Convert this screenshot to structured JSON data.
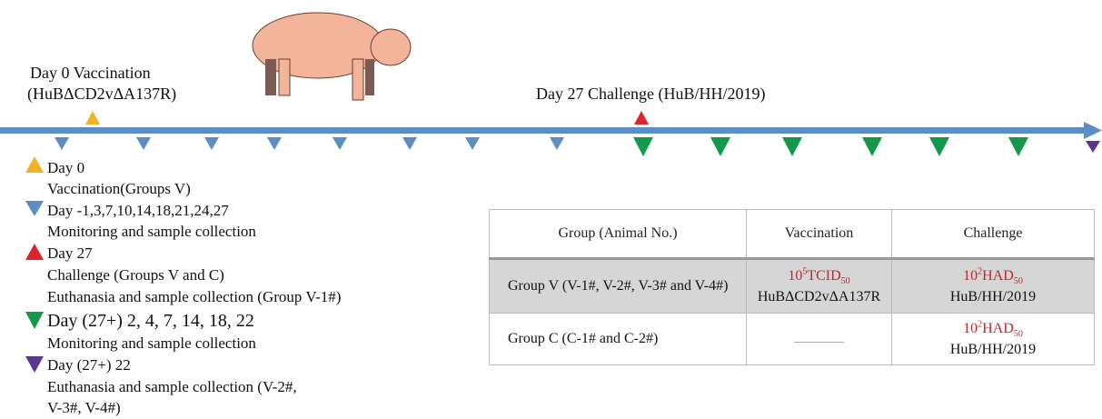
{
  "timeline": {
    "day0_label": "Day 0  Vaccination",
    "day0_strain": "(HuBΔCD2vΔA137R)",
    "day27_label": "Day 27 Challenge (HuB/HH/2019)",
    "colors": {
      "axis": "#5b8ec4",
      "yellow": "#f0b323",
      "blue": "#5b8ec4",
      "red": "#e0242c",
      "green": "#129a4a",
      "purple": "#5b3794"
    }
  },
  "legend": [
    {
      "icon": "yellow-up-triangle",
      "lines": [
        "Day 0",
        "Vaccination(Groups V)"
      ]
    },
    {
      "icon": "blue-down-triangle",
      "lines": [
        "Day -1,3,7,10,14,18,21,24,27",
        "Monitoring and sample collection"
      ]
    },
    {
      "icon": "red-up-triangle",
      "lines": [
        "Day 27",
        "Challenge (Groups V and C)",
        "Euthanasia and sample collection (Group V-1#)"
      ]
    },
    {
      "icon": "green-down-triangle",
      "lines": [
        "Day (27+) 2, 4, 7, 14, 18, 22",
        "Monitoring and sample collection"
      ]
    },
    {
      "icon": "purple-down-triangle",
      "lines": [
        "Day (27+) 22",
        "Euthanasia and sample collection (V-2#,",
        "V-3#, V-4#)"
      ]
    }
  ],
  "table": {
    "headers": [
      "Group (Animal No.)",
      "Vaccination",
      "Challenge"
    ],
    "rows": [
      {
        "group": "Group V (V-1#, V-2#, V-3# and V-4#)",
        "vacc_dose": "10",
        "vacc_exp": "5",
        "vacc_unit": "TCID",
        "vacc_sub": "50",
        "vacc_strain": "HuBΔCD2vΔA137R",
        "ch_dose": "10",
        "ch_exp": "2",
        "ch_unit": "HAD",
        "ch_sub": "50",
        "ch_strain": "HuB/HH/2019"
      },
      {
        "group": "Group C (C-1# and C-2#)",
        "vacc_dose": "",
        "ch_dose": "10",
        "ch_exp": "2",
        "ch_unit": "HAD",
        "ch_sub": "50",
        "ch_strain": "HuB/HH/2019"
      }
    ]
  }
}
